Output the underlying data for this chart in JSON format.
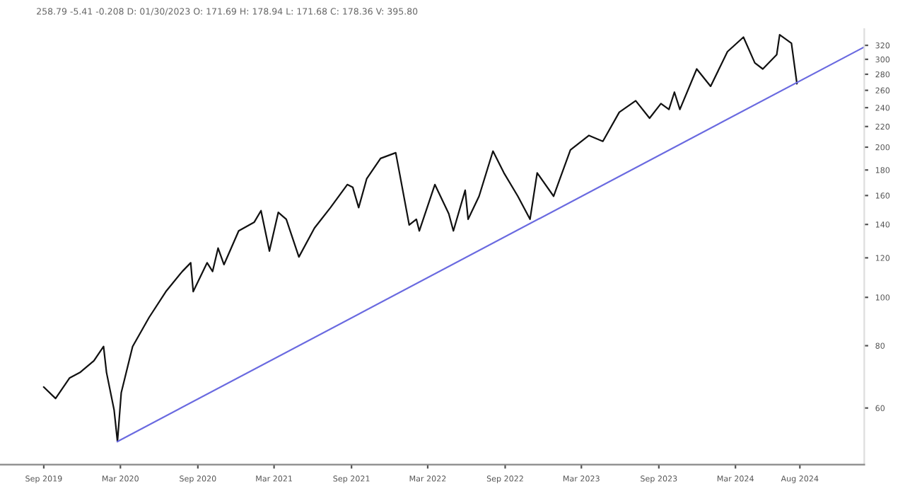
{
  "chart_data": {
    "type": "line",
    "log": "y",
    "grid": false,
    "legend": false,
    "marker": "none",
    "line_style": "solid",
    "annotations": [
      "258.79 -5.41 -0.208 D: 01/30/2023 O: 171.69 H: 178.94 L: 171.68 C: 178.36 V: 395.80"
    ],
    "xlim": [
      "2019-05-20",
      "2025-01-01"
    ],
    "ylim": [
      46.2,
      345
    ],
    "xticks": [
      {
        "value": "2019-09-01",
        "label": "Sep 2019"
      },
      {
        "value": "2020-03-01",
        "label": "Mar 2020"
      },
      {
        "value": "2020-09-01",
        "label": "Sep 2020"
      },
      {
        "value": "2021-03-01",
        "label": "Mar 2021"
      },
      {
        "value": "2021-09-01",
        "label": "Sep 2021"
      },
      {
        "value": "2022-03-01",
        "label": "Mar 2022"
      },
      {
        "value": "2022-09-01",
        "label": "Sep 2022"
      },
      {
        "value": "2023-03-01",
        "label": "Mar 2023"
      },
      {
        "value": "2023-09-01",
        "label": "Sep 2023"
      },
      {
        "value": "2024-03-01",
        "label": "Mar 2024"
      },
      {
        "value": "2024-08-01",
        "label": "Aug 2024"
      }
    ],
    "yticks": [
      60,
      80,
      100,
      120,
      140,
      160,
      180,
      200,
      220,
      240,
      260,
      280,
      300,
      320
    ],
    "series": [
      {
        "color": "#111111",
        "x": [
          "2019-09-01",
          "2019-09-29",
          "2019-11-01",
          "2019-11-27",
          "2019-12-29",
          "2020-01-21",
          "2020-01-28",
          "2020-02-15",
          "2020-02-23",
          "2020-03-03",
          "2020-03-30",
          "2020-05-08",
          "2020-06-17",
          "2020-07-26",
          "2020-08-15",
          "2020-08-21",
          "2020-09-23",
          "2020-10-06",
          "2020-10-19",
          "2020-11-02",
          "2020-12-07",
          "2021-01-13",
          "2021-01-29",
          "2021-02-18",
          "2021-03-11",
          "2021-03-30",
          "2021-04-29",
          "2021-06-05",
          "2021-07-13",
          "2021-08-22",
          "2021-09-04",
          "2021-09-18",
          "2021-10-07",
          "2021-11-09",
          "2021-12-15",
          "2021-12-24",
          "2022-01-16",
          "2022-02-02",
          "2022-02-09",
          "2022-03-18",
          "2022-04-20",
          "2022-05-01",
          "2022-05-29",
          "2022-06-05",
          "2022-07-01",
          "2022-08-03",
          "2022-08-29",
          "2022-10-01",
          "2022-10-30",
          "2022-11-16",
          "2022-12-25",
          "2023-02-03",
          "2023-03-19",
          "2023-04-21",
          "2023-05-30",
          "2023-07-08",
          "2023-08-10",
          "2023-09-06",
          "2023-09-25",
          "2023-10-08",
          "2023-10-21",
          "2023-11-30",
          "2024-01-02",
          "2024-02-11",
          "2024-03-20",
          "2024-04-16",
          "2024-05-05",
          "2024-06-07",
          "2024-06-14",
          "2024-07-12",
          "2024-07-25"
        ],
        "values": [
          66.1,
          62.7,
          68.9,
          70.8,
          74.6,
          79.7,
          70.7,
          59.5,
          51.4,
          64.4,
          79.7,
          91.1,
          102.7,
          112.7,
          117.3,
          102.7,
          117.3,
          112.7,
          125.5,
          116.3,
          135.9,
          141.5,
          149.2,
          123.8,
          148.0,
          143.4,
          120.5,
          137.7,
          151.3,
          168.3,
          166.1,
          151.3,
          172.8,
          189.9,
          194.9,
          177.6,
          139.7,
          143.4,
          135.9,
          168.3,
          147.1,
          135.9,
          163.9,
          143.4,
          159.5,
          196.4,
          177.6,
          159.5,
          143.4,
          177.6,
          159.5,
          197.5,
          211.1,
          205.5,
          235.0,
          247.8,
          228.6,
          244.6,
          238.1,
          257.8,
          238.1,
          286.9,
          264.9,
          310.8,
          332.3,
          295.1,
          286.9,
          306.5,
          336.0,
          323.0,
          268.2
        ]
      },
      {
        "type": "line",
        "color": "#6a6ae0",
        "x": [
          "2020-02-23",
          "2025-01-01"
        ],
        "values": [
          51.4,
          317.6
        ]
      }
    ]
  }
}
